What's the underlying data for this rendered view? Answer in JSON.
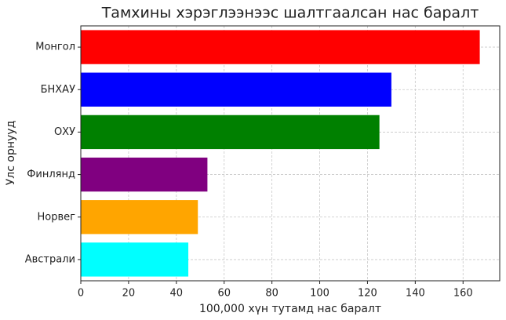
{
  "chart_data": {
    "type": "barh",
    "title": "Тамхины хэрэглээнээс шалтгаалсан нас баралт",
    "xlabel": "100,000 хүн тутамд нас баралт",
    "ylabel": "Улс орнууд",
    "categories": [
      "Монгол",
      "БНХАУ",
      "ОХУ",
      "Финлянд",
      "Норвег",
      "Австрали"
    ],
    "values": [
      167,
      130,
      125,
      53,
      49,
      45
    ],
    "colors": [
      "#ff0000",
      "#0000ff",
      "#008000",
      "#800080",
      "#ffa500",
      "#00ffff"
    ],
    "xlim": [
      0,
      175.35
    ],
    "xticks": [
      0,
      20,
      40,
      60,
      80,
      100,
      120,
      140,
      160
    ],
    "grid": true
  }
}
